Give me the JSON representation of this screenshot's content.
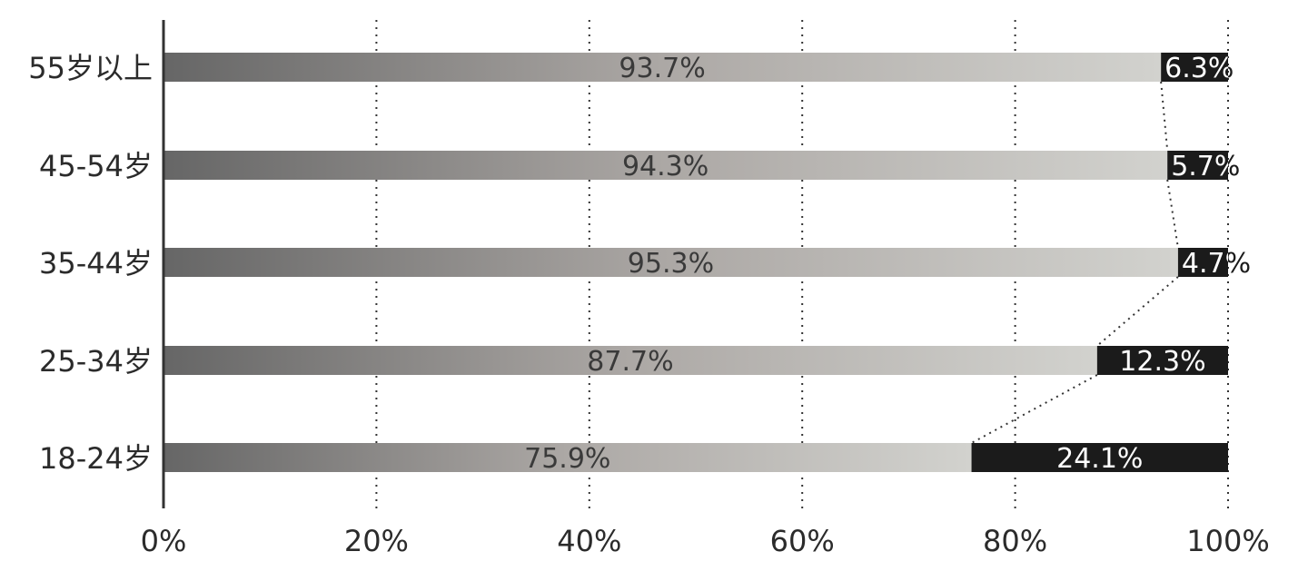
{
  "chart_data": {
    "type": "bar",
    "orientation": "horizontal",
    "stacked": true,
    "categories": [
      "55岁以上",
      "45-54岁",
      "35-44岁",
      "25-34岁",
      "18-24岁"
    ],
    "series": [
      {
        "values": [
          93.7,
          94.3,
          95.3,
          87.7,
          75.9
        ],
        "labels": [
          "93.7%",
          "94.3%",
          "95.3%",
          "87.7%",
          "75.9%"
        ],
        "color_start": "#666666",
        "color_mid": "#aca8a5",
        "color_end": "#d2d2ce",
        "label_color": "#3a3a3a"
      },
      {
        "values": [
          6.3,
          5.7,
          4.7,
          12.3,
          24.1
        ],
        "labels": [
          "6.3%",
          "5.7%",
          "4.7%",
          "12.3%",
          "24.1%"
        ],
        "color": "#1b1b1b",
        "label_color": "#ffffff"
      }
    ],
    "x_ticks": [
      "0%",
      "20%",
      "40%",
      "60%",
      "80%",
      "100%"
    ],
    "xlim": [
      0,
      100
    ],
    "grid": true,
    "connector_lines": true,
    "title": "",
    "xlabel": "",
    "ylabel": ""
  }
}
